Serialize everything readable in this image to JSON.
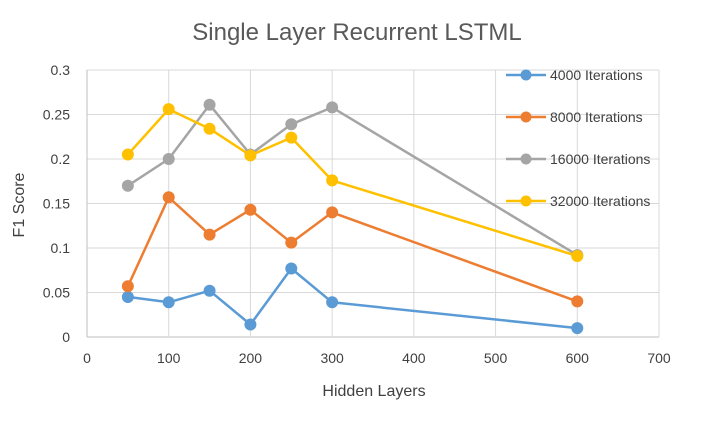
{
  "chart_data": {
    "type": "scatter",
    "title": "Single Layer Recurrent LSTML",
    "xlabel": "Hidden Layers",
    "ylabel": "F1 Score",
    "xlim": [
      0,
      700
    ],
    "ylim": [
      0,
      0.3
    ],
    "xticks": [
      0,
      100,
      200,
      300,
      400,
      500,
      600,
      700
    ],
    "yticks": [
      0,
      0.05,
      0.1,
      0.15,
      0.2,
      0.25,
      0.3
    ],
    "xtick_labels": [
      "0",
      "100",
      "200",
      "300",
      "400",
      "500",
      "600",
      "700"
    ],
    "ytick_labels": [
      "0",
      "0.05",
      "0.1",
      "0.15",
      "0.2",
      "0.25",
      "0.3"
    ],
    "grid": "vertical and horizontal",
    "legend_position": "right",
    "x": [
      50,
      100,
      150,
      200,
      250,
      300,
      600
    ],
    "series": [
      {
        "name": "4000 Iterations",
        "color": "#5b9bd5",
        "values": [
          0.045,
          0.039,
          0.052,
          0.014,
          0.077,
          0.039,
          0.01
        ]
      },
      {
        "name": "8000 Iterations",
        "color": "#ed7d31",
        "values": [
          0.057,
          0.157,
          0.115,
          0.143,
          0.106,
          0.14,
          0.04
        ]
      },
      {
        "name": "16000 Iterations",
        "color": "#a5a5a5",
        "values": [
          0.17,
          0.2,
          0.261,
          0.205,
          0.239,
          0.258,
          0.092
        ]
      },
      {
        "name": "32000 Iterations",
        "color": "#ffc000",
        "values": [
          0.205,
          0.256,
          0.234,
          0.204,
          0.224,
          0.176,
          0.091
        ]
      }
    ]
  }
}
